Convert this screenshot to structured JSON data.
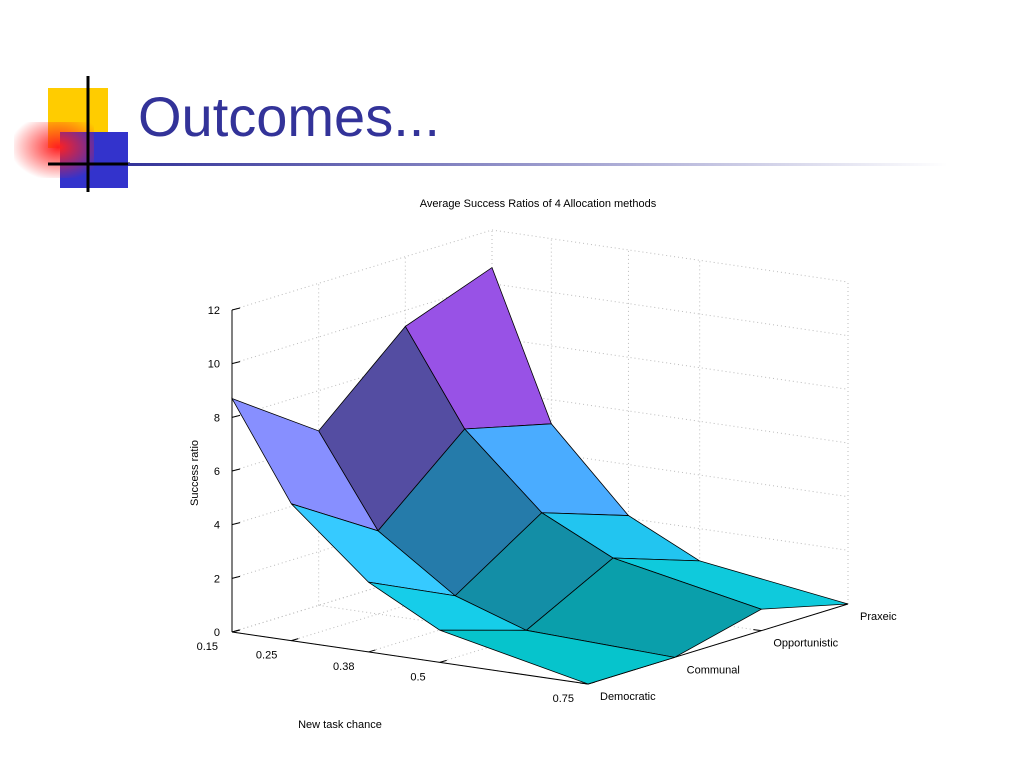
{
  "slide_title": "Outcomes...",
  "chart_data": {
    "type": "surface3d",
    "title": "Average Success Ratios of 4 Allocation methods",
    "x_label": "New task chance",
    "z_label": "Success ratio",
    "x": [
      0.15,
      0.25,
      0.38,
      0.5,
      0.75
    ],
    "xlim": [
      0.15,
      0.75
    ],
    "xticks": [
      0.15,
      0.25,
      0.38,
      0.5,
      0.75
    ],
    "categories": [
      "Democratic",
      "Communal",
      "Opportunistic",
      "Praxeic"
    ],
    "values": [
      [
        8.7,
        5.1,
        2.6,
        1.2,
        0
      ],
      [
        6.5,
        3.1,
        1.1,
        0.2,
        0
      ],
      [
        9.4,
        5.9,
        3.2,
        1.9,
        0.8
      ],
      [
        10.6,
        5.1,
        2.1,
        0.8,
        0
      ]
    ],
    "zlim": [
      0,
      12
    ],
    "zticks": [
      0,
      2,
      4,
      6,
      8,
      10,
      12
    ],
    "grid": true
  }
}
